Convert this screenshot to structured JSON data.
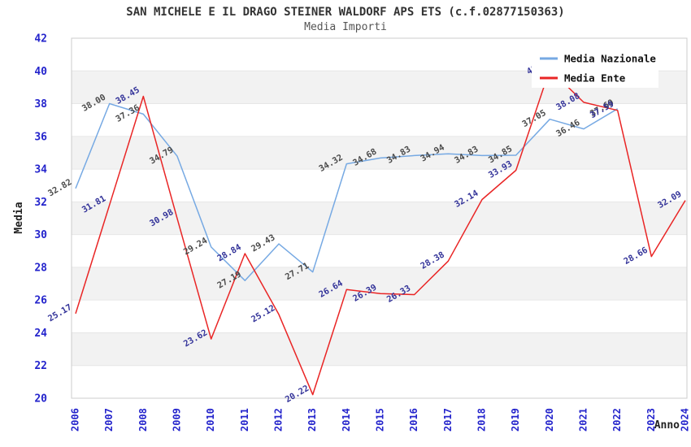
{
  "title": "SAN MICHELE E IL DRAGO STEINER WALDORF APS ETS (c.f.02877150363)",
  "subtitle": "Media Importi",
  "axes": {
    "y_label": "Media",
    "x_label": "Anno",
    "y_min": 20,
    "y_max": 42,
    "y_step": 2,
    "y_ticks": [
      "20",
      "22",
      "24",
      "26",
      "28",
      "30",
      "32",
      "34",
      "36",
      "38",
      "40",
      "42"
    ]
  },
  "legend": {
    "position": "top-right",
    "items": [
      {
        "label": "Media Nazionale",
        "color": "#76a9e3"
      },
      {
        "label": "Media Ente",
        "color": "#e92525"
      }
    ]
  },
  "colors": {
    "band_gray": "#f2f2f2",
    "gridline": "#e6e6e6",
    "plot_border": "#cccccc",
    "tick_text": "#2424cc",
    "nazionale_line": "#76a9e3",
    "ente_line": "#e92525",
    "nazionale_label": "#4a4a4a",
    "ente_label": "#333399"
  },
  "chart_data": {
    "type": "line",
    "title": "SAN MICHELE E IL DRAGO STEINER WALDORF APS ETS (c.f.02877150363)",
    "subtitle": "Media Importi",
    "xlabel": "Anno",
    "ylabel": "Media",
    "ylim": [
      20,
      42
    ],
    "grid": "alternating-horizontal-bands",
    "legend_position": "top-right",
    "x": [
      "2006",
      "2007",
      "2008",
      "2009",
      "2010",
      "2011",
      "2012",
      "2013",
      "2014",
      "2015",
      "2016",
      "2017",
      "2018",
      "2019",
      "2020",
      "2021",
      "2022",
      "2023",
      "2024"
    ],
    "series": [
      {
        "name": "Media Nazionale",
        "color": "#76a9e3",
        "label_color": "#4a4a4a",
        "values": [
          32.82,
          38.0,
          37.36,
          34.79,
          29.24,
          27.19,
          29.43,
          27.71,
          34.32,
          34.68,
          34.83,
          34.94,
          34.83,
          34.85,
          37.05,
          36.46,
          37.69,
          null,
          null
        ],
        "labels": [
          "32.82",
          "38.00",
          "37.36",
          "34.79",
          "29.24",
          "27.19",
          "29.43",
          "27.71",
          "34.32",
          "34.68",
          "34.83",
          "34.94",
          "34.83",
          "34.85",
          "37.05",
          "36.46",
          "37.69",
          "",
          ""
        ]
      },
      {
        "name": "Media Ente",
        "color": "#e92525",
        "label_color": "#333399",
        "values": [
          25.17,
          31.81,
          38.45,
          30.98,
          23.62,
          28.84,
          25.12,
          20.22,
          26.64,
          26.39,
          26.33,
          28.38,
          32.14,
          33.93,
          40.1,
          38.08,
          37.59,
          28.66,
          32.09
        ],
        "labels": [
          "25.17",
          "31.81",
          "38.45",
          "30.98",
          "23.62",
          "28.84",
          "25.12",
          "20.22",
          "26.64",
          "26.39",
          "26.33",
          "28.38",
          "32.14",
          "33.93",
          "40.1",
          "38.08",
          "37.59",
          "28.66",
          "32.09"
        ]
      }
    ]
  }
}
